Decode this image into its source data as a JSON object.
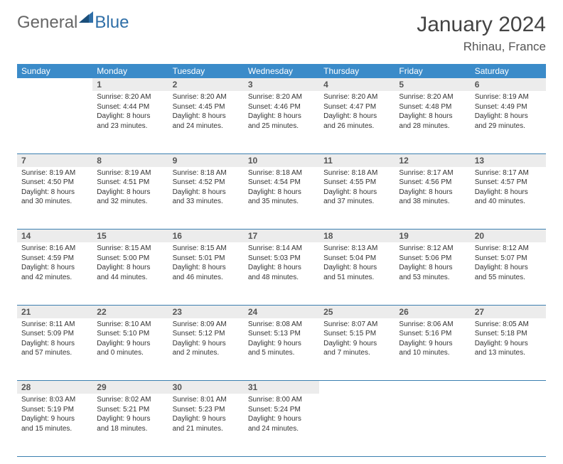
{
  "logo": {
    "part1": "General",
    "part2": "Blue"
  },
  "title": "January 2024",
  "location": "Rhinau, France",
  "colors": {
    "header_bg": "#3b8bc9",
    "row_line": "#3b7fb0",
    "daynum_bg": "#ececec"
  },
  "day_headers": [
    "Sunday",
    "Monday",
    "Tuesday",
    "Wednesday",
    "Thursday",
    "Friday",
    "Saturday"
  ],
  "weeks": [
    {
      "nums": [
        "",
        "1",
        "2",
        "3",
        "4",
        "5",
        "6"
      ],
      "cells": [
        null,
        {
          "sunrise": "Sunrise: 8:20 AM",
          "sunset": "Sunset: 4:44 PM",
          "day1": "Daylight: 8 hours",
          "day2": "and 23 minutes."
        },
        {
          "sunrise": "Sunrise: 8:20 AM",
          "sunset": "Sunset: 4:45 PM",
          "day1": "Daylight: 8 hours",
          "day2": "and 24 minutes."
        },
        {
          "sunrise": "Sunrise: 8:20 AM",
          "sunset": "Sunset: 4:46 PM",
          "day1": "Daylight: 8 hours",
          "day2": "and 25 minutes."
        },
        {
          "sunrise": "Sunrise: 8:20 AM",
          "sunset": "Sunset: 4:47 PM",
          "day1": "Daylight: 8 hours",
          "day2": "and 26 minutes."
        },
        {
          "sunrise": "Sunrise: 8:20 AM",
          "sunset": "Sunset: 4:48 PM",
          "day1": "Daylight: 8 hours",
          "day2": "and 28 minutes."
        },
        {
          "sunrise": "Sunrise: 8:19 AM",
          "sunset": "Sunset: 4:49 PM",
          "day1": "Daylight: 8 hours",
          "day2": "and 29 minutes."
        }
      ]
    },
    {
      "nums": [
        "7",
        "8",
        "9",
        "10",
        "11",
        "12",
        "13"
      ],
      "cells": [
        {
          "sunrise": "Sunrise: 8:19 AM",
          "sunset": "Sunset: 4:50 PM",
          "day1": "Daylight: 8 hours",
          "day2": "and 30 minutes."
        },
        {
          "sunrise": "Sunrise: 8:19 AM",
          "sunset": "Sunset: 4:51 PM",
          "day1": "Daylight: 8 hours",
          "day2": "and 32 minutes."
        },
        {
          "sunrise": "Sunrise: 8:18 AM",
          "sunset": "Sunset: 4:52 PM",
          "day1": "Daylight: 8 hours",
          "day2": "and 33 minutes."
        },
        {
          "sunrise": "Sunrise: 8:18 AM",
          "sunset": "Sunset: 4:54 PM",
          "day1": "Daylight: 8 hours",
          "day2": "and 35 minutes."
        },
        {
          "sunrise": "Sunrise: 8:18 AM",
          "sunset": "Sunset: 4:55 PM",
          "day1": "Daylight: 8 hours",
          "day2": "and 37 minutes."
        },
        {
          "sunrise": "Sunrise: 8:17 AM",
          "sunset": "Sunset: 4:56 PM",
          "day1": "Daylight: 8 hours",
          "day2": "and 38 minutes."
        },
        {
          "sunrise": "Sunrise: 8:17 AM",
          "sunset": "Sunset: 4:57 PM",
          "day1": "Daylight: 8 hours",
          "day2": "and 40 minutes."
        }
      ]
    },
    {
      "nums": [
        "14",
        "15",
        "16",
        "17",
        "18",
        "19",
        "20"
      ],
      "cells": [
        {
          "sunrise": "Sunrise: 8:16 AM",
          "sunset": "Sunset: 4:59 PM",
          "day1": "Daylight: 8 hours",
          "day2": "and 42 minutes."
        },
        {
          "sunrise": "Sunrise: 8:15 AM",
          "sunset": "Sunset: 5:00 PM",
          "day1": "Daylight: 8 hours",
          "day2": "and 44 minutes."
        },
        {
          "sunrise": "Sunrise: 8:15 AM",
          "sunset": "Sunset: 5:01 PM",
          "day1": "Daylight: 8 hours",
          "day2": "and 46 minutes."
        },
        {
          "sunrise": "Sunrise: 8:14 AM",
          "sunset": "Sunset: 5:03 PM",
          "day1": "Daylight: 8 hours",
          "day2": "and 48 minutes."
        },
        {
          "sunrise": "Sunrise: 8:13 AM",
          "sunset": "Sunset: 5:04 PM",
          "day1": "Daylight: 8 hours",
          "day2": "and 51 minutes."
        },
        {
          "sunrise": "Sunrise: 8:12 AM",
          "sunset": "Sunset: 5:06 PM",
          "day1": "Daylight: 8 hours",
          "day2": "and 53 minutes."
        },
        {
          "sunrise": "Sunrise: 8:12 AM",
          "sunset": "Sunset: 5:07 PM",
          "day1": "Daylight: 8 hours",
          "day2": "and 55 minutes."
        }
      ]
    },
    {
      "nums": [
        "21",
        "22",
        "23",
        "24",
        "25",
        "26",
        "27"
      ],
      "cells": [
        {
          "sunrise": "Sunrise: 8:11 AM",
          "sunset": "Sunset: 5:09 PM",
          "day1": "Daylight: 8 hours",
          "day2": "and 57 minutes."
        },
        {
          "sunrise": "Sunrise: 8:10 AM",
          "sunset": "Sunset: 5:10 PM",
          "day1": "Daylight: 9 hours",
          "day2": "and 0 minutes."
        },
        {
          "sunrise": "Sunrise: 8:09 AM",
          "sunset": "Sunset: 5:12 PM",
          "day1": "Daylight: 9 hours",
          "day2": "and 2 minutes."
        },
        {
          "sunrise": "Sunrise: 8:08 AM",
          "sunset": "Sunset: 5:13 PM",
          "day1": "Daylight: 9 hours",
          "day2": "and 5 minutes."
        },
        {
          "sunrise": "Sunrise: 8:07 AM",
          "sunset": "Sunset: 5:15 PM",
          "day1": "Daylight: 9 hours",
          "day2": "and 7 minutes."
        },
        {
          "sunrise": "Sunrise: 8:06 AM",
          "sunset": "Sunset: 5:16 PM",
          "day1": "Daylight: 9 hours",
          "day2": "and 10 minutes."
        },
        {
          "sunrise": "Sunrise: 8:05 AM",
          "sunset": "Sunset: 5:18 PM",
          "day1": "Daylight: 9 hours",
          "day2": "and 13 minutes."
        }
      ]
    },
    {
      "nums": [
        "28",
        "29",
        "30",
        "31",
        "",
        "",
        ""
      ],
      "cells": [
        {
          "sunrise": "Sunrise: 8:03 AM",
          "sunset": "Sunset: 5:19 PM",
          "day1": "Daylight: 9 hours",
          "day2": "and 15 minutes."
        },
        {
          "sunrise": "Sunrise: 8:02 AM",
          "sunset": "Sunset: 5:21 PM",
          "day1": "Daylight: 9 hours",
          "day2": "and 18 minutes."
        },
        {
          "sunrise": "Sunrise: 8:01 AM",
          "sunset": "Sunset: 5:23 PM",
          "day1": "Daylight: 9 hours",
          "day2": "and 21 minutes."
        },
        {
          "sunrise": "Sunrise: 8:00 AM",
          "sunset": "Sunset: 5:24 PM",
          "day1": "Daylight: 9 hours",
          "day2": "and 24 minutes."
        },
        null,
        null,
        null
      ]
    }
  ]
}
